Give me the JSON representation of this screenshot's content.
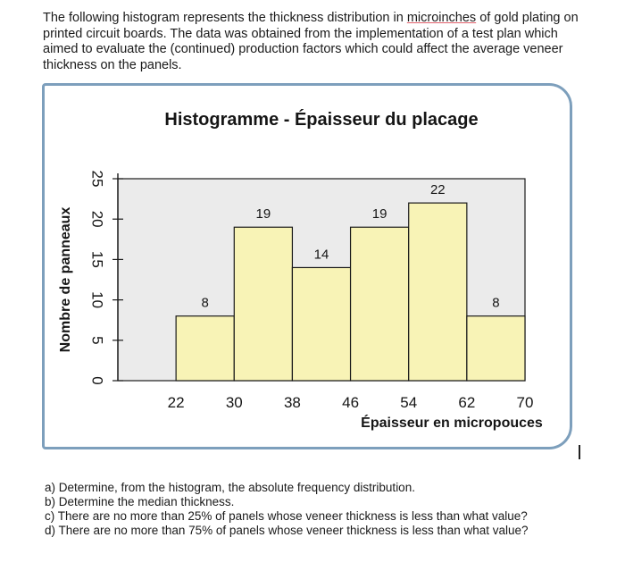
{
  "intro": {
    "part1": "The following histogram represents the thickness distribution in ",
    "highlight": "microinches",
    "part2": " of gold plating on printed circuit boards. The data was obtained from the implementation of a test plan which aimed to evaluate the (continued) production factors which could affect the average veneer thickness on the panels."
  },
  "chart_data": {
    "type": "bar",
    "title": "Histogramme - Épaisseur du placage",
    "xlabel": "Épaisseur en micropouces",
    "ylabel": "Nombre de panneaux",
    "bins": [
      [
        22,
        30
      ],
      [
        30,
        38
      ],
      [
        38,
        46
      ],
      [
        46,
        54
      ],
      [
        54,
        62
      ],
      [
        62,
        70
      ]
    ],
    "values": [
      8,
      19,
      14,
      19,
      22,
      8
    ],
    "x_ticks": [
      22,
      30,
      38,
      46,
      54,
      62,
      70
    ],
    "y_ticks": [
      0,
      5,
      10,
      15,
      20,
      25
    ],
    "xlim": [
      14,
      70
    ],
    "ylim": [
      0,
      25
    ],
    "colors": {
      "bar_fill": "#f8f3b6",
      "bar_stroke": "#1a1a1a",
      "plot_bg": "#ebebeb",
      "frame": "#7d9fbc"
    }
  },
  "questions": [
    "a) Determine, from the histogram, the absolute frequency distribution.",
    "b) Determine the median thickness.",
    "c) There are no more than 25% of panels whose veneer thickness is less than what value?",
    "d) There are no more than 75% of panels whose veneer thickness is less than what value?"
  ]
}
